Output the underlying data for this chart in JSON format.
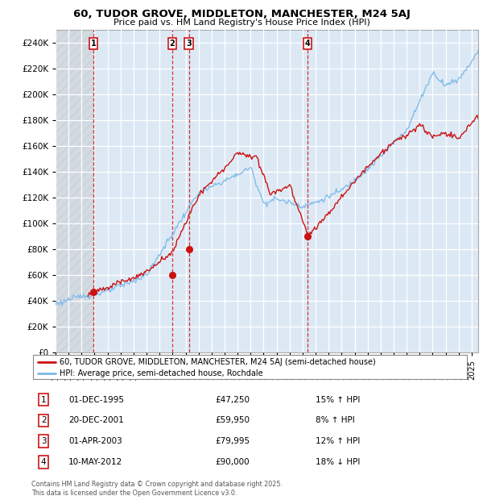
{
  "title": "60, TUDOR GROVE, MIDDLETON, MANCHESTER, M24 5AJ",
  "subtitle": "Price paid vs. HM Land Registry's House Price Index (HPI)",
  "hpi_color": "#7ab8e8",
  "price_color": "#cc1111",
  "ylim": [
    0,
    250000
  ],
  "yticks": [
    0,
    20000,
    40000,
    60000,
    80000,
    100000,
    120000,
    140000,
    160000,
    180000,
    200000,
    220000,
    240000
  ],
  "xlim_start": 1993.0,
  "xlim_end": 2025.5,
  "transactions": [
    {
      "num": 1,
      "date": "01-DEC-1995",
      "price": 47250,
      "pct": "15%",
      "dir": "↑",
      "year": 1995.92
    },
    {
      "num": 2,
      "date": "20-DEC-2001",
      "price": 59950,
      "pct": "8%",
      "dir": "↑",
      "year": 2001.96
    },
    {
      "num": 3,
      "date": "01-APR-2003",
      "price": 79995,
      "pct": "12%",
      "dir": "↑",
      "year": 2003.25
    },
    {
      "num": 4,
      "date": "10-MAY-2012",
      "price": 90000,
      "pct": "18%",
      "dir": "↓",
      "year": 2012.36
    }
  ],
  "legend_label_price": "60, TUDOR GROVE, MIDDLETON, MANCHESTER, M24 5AJ (semi-detached house)",
  "legend_label_hpi": "HPI: Average price, semi-detached house, Rochdale",
  "footnote": "Contains HM Land Registry data © Crown copyright and database right 2025.\nThis data is licensed under the Open Government Licence v3.0.",
  "hatch_region_end": 1995.92,
  "bg_color": "#dce9f5"
}
